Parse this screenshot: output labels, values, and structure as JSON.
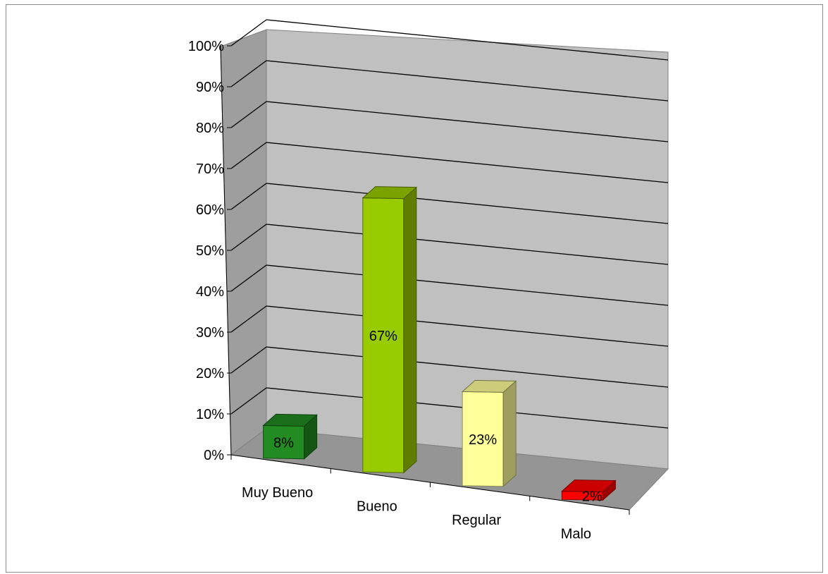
{
  "chart_data": {
    "type": "bar",
    "style": "3d-column",
    "categories": [
      "Muy Bueno",
      "Bueno",
      "Regular",
      "Malo"
    ],
    "values": [
      8,
      67,
      23,
      2
    ],
    "data_labels": [
      "8%",
      "67%",
      "23%",
      "2%"
    ],
    "ylim": [
      0,
      100
    ],
    "y_ticks": [
      "0%",
      "10%",
      "20%",
      "30%",
      "40%",
      "50%",
      "60%",
      "70%",
      "80%",
      "90%",
      "100%"
    ],
    "grid": true,
    "legend": "none",
    "colors": {
      "wall": "#c0c0c0",
      "floor": "#959595",
      "side_wall": "#9e9e9e",
      "bars": [
        "#228b22",
        "#99cc00",
        "#ffff99",
        "#ff0000"
      ]
    }
  }
}
